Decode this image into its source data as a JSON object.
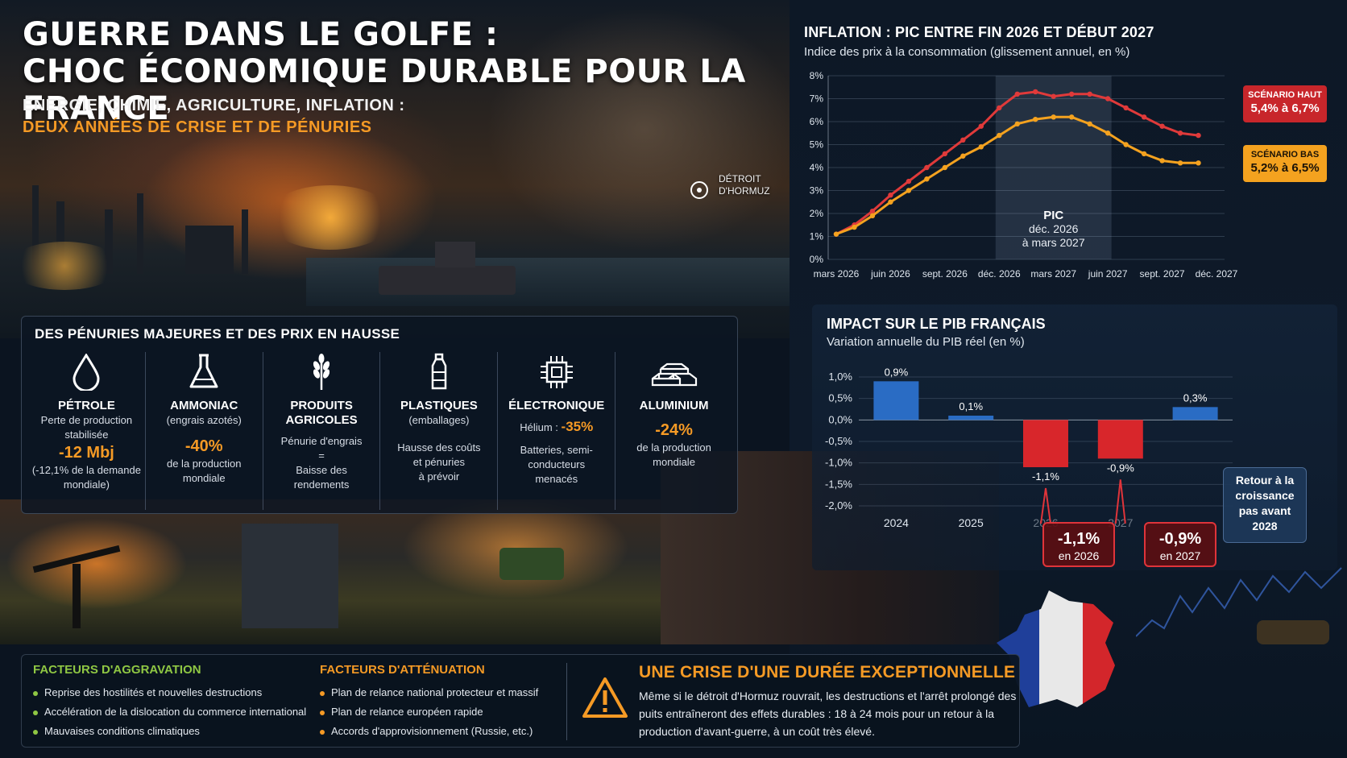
{
  "header": {
    "title_line1": "GUERRE DANS LE GOLFE :",
    "title_line2": "CHOC ÉCONOMIQUE DURABLE POUR LA FRANCE",
    "subtitle_line1": "ÉNERGIE, CHIMIE, AGRICULTURE, INFLATION :",
    "subtitle_line2": "DEUX ANNÉES DE CRISE ET DE PÉNURIES"
  },
  "map": {
    "label_line1": "DÉTROIT",
    "label_line2": "D'HORMUZ"
  },
  "shortages": {
    "title": "DES PÉNURIES MAJEURES ET DES PRIX EN HAUSSE",
    "items": [
      {
        "icon": "oil-drop-icon",
        "name": "PÉTROLE",
        "line1": "Perte de production",
        "line2": "stabilisée",
        "value": "-12 Mbj",
        "line3": "(-12,1% de la demande",
        "line4": "mondiale)"
      },
      {
        "icon": "flask-icon",
        "name": "AMMONIAC",
        "qualifier": "(engrais azotés)",
        "value": "-40%",
        "line1": "de la production",
        "line2": "mondiale"
      },
      {
        "icon": "wheat-icon",
        "name_line1": "PRODUITS",
        "name_line2": "AGRICOLES",
        "line1": "Pénurie d'engrais",
        "line2": "=",
        "line3": "Baisse des",
        "line4": "rendements"
      },
      {
        "icon": "bottle-icon",
        "name": "PLASTIQUES",
        "qualifier": "(emballages)",
        "line1": "Hausse des coûts",
        "line2": "et pénuries",
        "line3": "à prévoir"
      },
      {
        "icon": "chip-icon",
        "name": "ÉLECTRONIQUE",
        "helium_label": "Hélium :",
        "value": "-35%",
        "line1": "Batteries, semi-",
        "line2": "conducteurs",
        "line3": "menacés"
      },
      {
        "icon": "ingots-icon",
        "name": "ALUMINIUM",
        "value": "-24%",
        "line1": "de la production",
        "line2": "mondiale"
      }
    ]
  },
  "inflation": {
    "title": "INFLATION : PIC ENTRE FIN 2026 ET DÉBUT 2027",
    "subtitle": "Indice des prix à la consommation (glissement annuel, en %)",
    "peak_label": "PIC",
    "peak_line1": "déc. 2026",
    "peak_line2": "à mars 2027",
    "high_badge_title": "SCÉNARIO HAUT",
    "high_badge_range": "5,4% à 6,7%",
    "low_badge_title": "SCÉNARIO BAS",
    "low_badge_range": "5,2% à 6,5%"
  },
  "gdp": {
    "title": "IMPACT SUR LE PIB FRANÇAIS",
    "subtitle": "Variation annuelle du PIB réel (en %)",
    "callouts": [
      {
        "value": "-1,1%",
        "year": "en 2026"
      },
      {
        "value": "-0,9%",
        "year": "en 2027"
      }
    ],
    "return_text": [
      "Retour à la",
      "croissance",
      "pas avant",
      "2028"
    ]
  },
  "bottom": {
    "aggravation_title": "FACTEURS D'AGGRAVATION",
    "aggravation": [
      "Reprise des hostilités et nouvelles destructions",
      "Accélération de la dislocation du commerce international",
      "Mauvaises conditions climatiques"
    ],
    "attenuation_title": "FACTEURS D'ATTÉNUATION",
    "attenuation": [
      "Plan de relance national protecteur et massif",
      "Plan de relance européen rapide",
      "Accords d'approvisionnement (Russie, etc.)"
    ],
    "crisis_title": "UNE CRISE D'UNE DURÉE EXCEPTIONNELLE",
    "crisis_text": "Même si le détroit d'Hormuz rouvrait, les destructions et l'arrêt prolongé des puits entraîneront des effets durables : 18 à 24 mois pour un retour à la production d'avant-guerre, à un coût très élevé."
  },
  "colors": {
    "accent_orange": "#f59a25",
    "scenario_high": "#e03a3a",
    "scenario_low": "#f4a21f",
    "gdp_positive": "#2a6cc4",
    "gdp_negative": "#d8262b",
    "aggravation_green": "#8fc743"
  },
  "chart_data": [
    {
      "type": "line",
      "title": "INFLATION : PIC ENTRE FIN 2026 ET DÉBUT 2027",
      "ylabel": "",
      "x_ticks": [
        "mars 2026",
        "juin 2026",
        "sept. 2026",
        "déc. 2026",
        "mars 2027",
        "juin 2027",
        "sept. 2027",
        "déc. 2027"
      ],
      "y_ticks": [
        "0%",
        "1%",
        "2%",
        "3%",
        "4%",
        "5%",
        "6%",
        "7%",
        "8%"
      ],
      "ylim": [
        0,
        8
      ],
      "x": [
        "2026-03",
        "2026-04",
        "2026-05",
        "2026-06",
        "2026-07",
        "2026-08",
        "2026-09",
        "2026-10",
        "2026-11",
        "2026-12",
        "2027-01",
        "2027-02",
        "2027-03",
        "2027-04",
        "2027-05",
        "2027-06",
        "2027-07",
        "2027-08",
        "2027-09",
        "2027-10",
        "2027-11"
      ],
      "series": [
        {
          "name": "SCÉNARIO HAUT",
          "color": "#e03a3a",
          "values": [
            1.1,
            1.5,
            2.1,
            2.8,
            3.4,
            4.0,
            4.6,
            5.2,
            5.8,
            6.6,
            7.2,
            7.3,
            7.1,
            7.2,
            7.2,
            7.0,
            6.6,
            6.2,
            5.8,
            5.5,
            5.4
          ]
        },
        {
          "name": "SCÉNARIO BAS",
          "color": "#f4a21f",
          "values": [
            1.1,
            1.4,
            1.9,
            2.5,
            3.0,
            3.5,
            4.0,
            4.5,
            4.9,
            5.4,
            5.9,
            6.1,
            6.2,
            6.2,
            5.9,
            5.5,
            5.0,
            4.6,
            4.3,
            4.2,
            4.2
          ]
        }
      ],
      "highlight": {
        "from": "2026-12",
        "to": "2027-03",
        "label": "PIC"
      },
      "grid": true
    },
    {
      "type": "bar",
      "title": "IMPACT SUR LE PIB FRANÇAIS",
      "ylabel": "",
      "categories": [
        "2024",
        "2025",
        "2026",
        "2027",
        "2028"
      ],
      "values": [
        0.9,
        0.1,
        -1.1,
        -0.9,
        0.3
      ],
      "value_labels": [
        "0,9%",
        "0,1%",
        "-1,1%",
        "-0,9%",
        "0,3%"
      ],
      "y_ticks": [
        "1,0%",
        "0,5%",
        "0,0%",
        "-0,5%",
        "-1,0%",
        "-1,5%",
        "-2,0%"
      ],
      "ylim": [
        -2.0,
        1.0
      ],
      "grid": true
    }
  ]
}
